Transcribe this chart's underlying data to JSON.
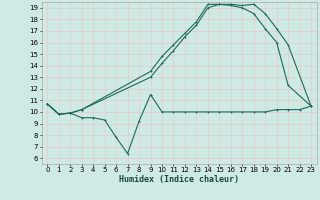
{
  "xlabel": "Humidex (Indice chaleur)",
  "bg_color": "#cfe9e5",
  "grid_color": "#b8d8d4",
  "line_color": "#1a6b5a",
  "xlim": [
    -0.5,
    23.5
  ],
  "ylim": [
    5.5,
    19.5
  ],
  "xticks": [
    0,
    1,
    2,
    3,
    4,
    5,
    6,
    7,
    8,
    9,
    10,
    11,
    12,
    13,
    14,
    15,
    16,
    17,
    18,
    19,
    20,
    21,
    22,
    23
  ],
  "yticks": [
    6,
    7,
    8,
    9,
    10,
    11,
    12,
    13,
    14,
    15,
    16,
    17,
    18,
    19
  ],
  "line1_x": [
    0,
    1,
    2,
    3,
    4,
    5,
    6,
    7,
    8,
    9,
    10,
    11,
    12,
    13,
    14,
    15,
    16,
    17,
    18,
    19,
    20,
    21,
    22,
    23
  ],
  "line1_y": [
    10.7,
    9.8,
    9.9,
    9.5,
    9.5,
    9.3,
    7.8,
    6.4,
    9.2,
    11.5,
    10.0,
    10.0,
    10.0,
    10.0,
    10.0,
    10.0,
    10.0,
    10.0,
    10.0,
    10.0,
    10.2,
    10.2,
    10.2,
    10.5
  ],
  "line2_x": [
    0,
    1,
    2,
    3,
    9,
    10,
    11,
    12,
    13,
    14,
    15,
    16,
    17,
    18,
    19,
    20,
    21,
    23
  ],
  "line2_y": [
    10.7,
    9.8,
    9.9,
    10.2,
    13.0,
    14.2,
    15.3,
    16.5,
    17.5,
    19.0,
    19.3,
    19.2,
    19.0,
    18.5,
    17.2,
    16.0,
    12.3,
    10.5
  ],
  "line3_x": [
    0,
    1,
    2,
    3,
    9,
    10,
    11,
    12,
    13,
    14,
    15,
    16,
    17,
    18,
    19,
    20,
    21,
    23
  ],
  "line3_y": [
    10.7,
    9.8,
    9.9,
    10.2,
    13.5,
    14.8,
    15.8,
    16.8,
    17.8,
    19.3,
    19.3,
    19.3,
    19.2,
    19.3,
    18.5,
    17.2,
    15.8,
    10.5
  ]
}
